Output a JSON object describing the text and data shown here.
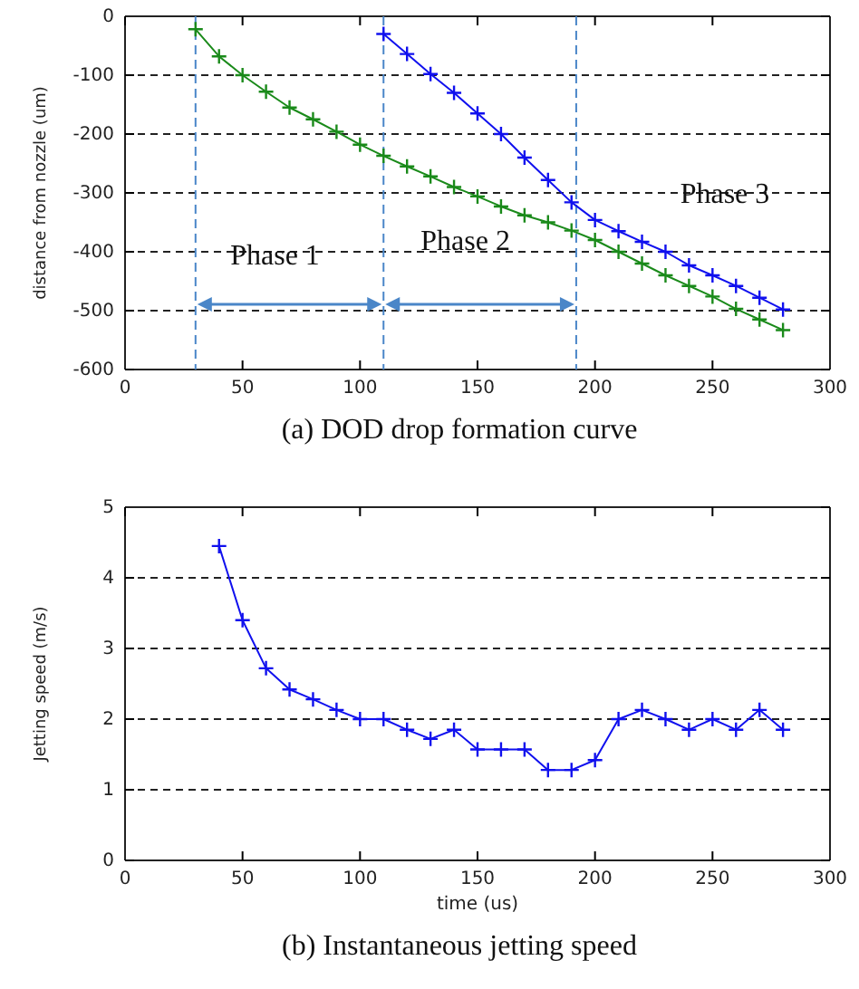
{
  "chart_data": [
    {
      "type": "line",
      "title": "(a) DOD drop formation curve",
      "ylabel": "distance from nozzle (um)",
      "xlim": [
        0,
        300
      ],
      "xticks": [
        0,
        50,
        100,
        150,
        200,
        250,
        300
      ],
      "ylim": [
        -600,
        0
      ],
      "yticks": [
        -600,
        -500,
        -400,
        -300,
        -200,
        -100,
        0
      ],
      "grid": "y",
      "marker": "cross",
      "line_style": "solid",
      "series": [
        {
          "color": "#1a8a1a",
          "x": [
            30,
            40,
            50,
            60,
            70,
            80,
            90,
            100,
            110,
            120,
            130,
            140,
            150,
            160,
            170,
            180,
            190,
            200,
            210,
            220,
            230,
            240,
            250,
            260,
            270,
            280
          ],
          "values": [
            -22,
            -68,
            -100,
            -128,
            -155,
            -175,
            -196,
            -218,
            -237,
            -255,
            -272,
            -290,
            -306,
            -323,
            -338,
            -350,
            -364,
            -380,
            -400,
            -420,
            -440,
            -458,
            -476,
            -497,
            -515,
            -533
          ]
        },
        {
          "color": "#1010ee",
          "x": [
            110,
            120,
            130,
            140,
            150,
            160,
            170,
            180,
            190,
            200,
            210,
            220,
            230,
            240,
            250,
            260,
            270,
            280
          ],
          "values": [
            -30,
            -64,
            -98,
            -130,
            -165,
            -200,
            -240,
            -278,
            -316,
            -346,
            -365,
            -383,
            -400,
            -423,
            -440,
            -458,
            -478,
            -498
          ]
        }
      ],
      "ref_lines": [
        {
          "axis": "x",
          "value": 30,
          "color": "#4a86c8",
          "line_style": "dashed"
        },
        {
          "axis": "x",
          "value": 110,
          "color": "#4a86c8",
          "line_style": "dashed"
        },
        {
          "axis": "x",
          "value": 192,
          "color": "#4a86c8",
          "line_style": "dashed"
        }
      ],
      "annotations": [
        "Phase 1",
        "Phase 2",
        "Phase 3"
      ]
    },
    {
      "type": "line",
      "title": "(b) Instantaneous jetting speed",
      "xlabel": "time (us)",
      "ylabel": "Jetting speed (m/s)",
      "xlim": [
        0,
        300
      ],
      "xticks": [
        0,
        50,
        100,
        150,
        200,
        250,
        300
      ],
      "ylim": [
        0,
        5
      ],
      "yticks": [
        0,
        1,
        2,
        3,
        4,
        5
      ],
      "grid": "y",
      "marker": "cross",
      "line_style": "solid",
      "series": [
        {
          "color": "#1010ee",
          "x": [
            40,
            50,
            60,
            70,
            80,
            90,
            100,
            110,
            120,
            130,
            140,
            150,
            160,
            170,
            180,
            190,
            200,
            210,
            220,
            230,
            240,
            250,
            260,
            270,
            280
          ],
          "values": [
            4.45,
            3.4,
            2.72,
            2.42,
            2.28,
            2.13,
            2.0,
            2.0,
            1.85,
            1.72,
            1.85,
            1.57,
            1.57,
            1.57,
            1.28,
            1.28,
            1.42,
            2.0,
            2.13,
            2.0,
            1.85,
            2.0,
            1.85,
            2.13,
            1.85
          ]
        }
      ]
    }
  ]
}
